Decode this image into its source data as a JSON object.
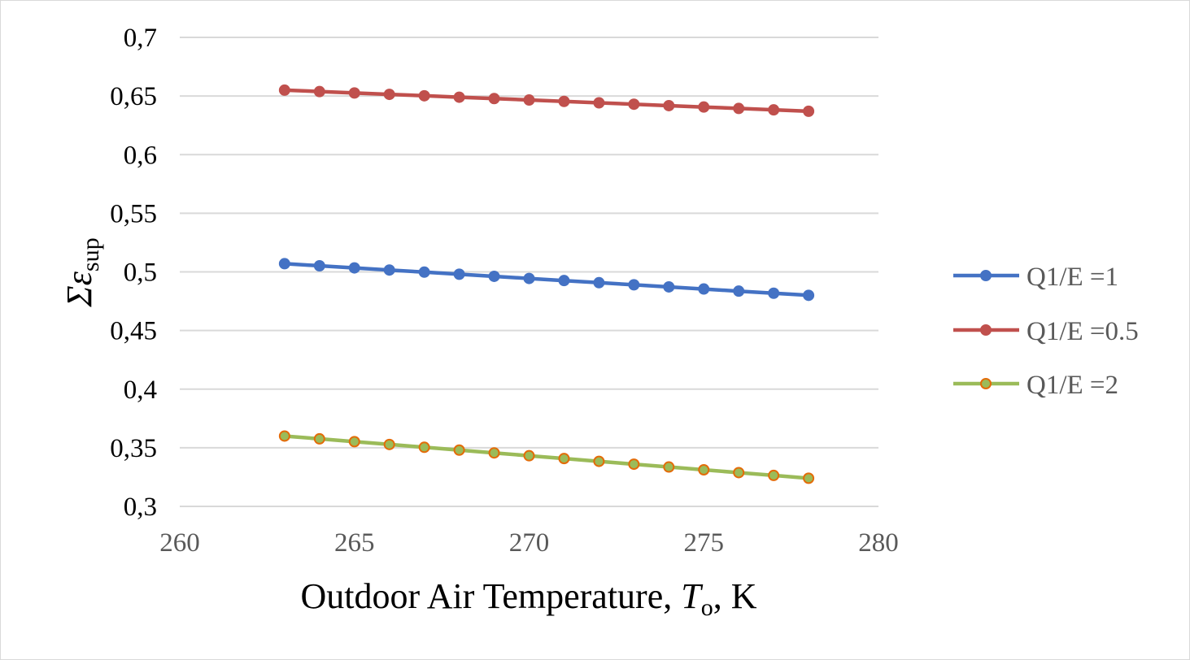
{
  "chart_data": {
    "type": "line",
    "title": "",
    "xlabel": {
      "prefix": "Outdoor Air Temperature, ",
      "symbol": "T",
      "subscript": "o",
      "suffix": ", K"
    },
    "ylabel": {
      "symbol": "Σε",
      "subscript": "sup"
    },
    "xlim": [
      260,
      280
    ],
    "ylim": [
      0.3,
      0.7
    ],
    "xticks": [
      "260",
      "265",
      "270",
      "275",
      "280"
    ],
    "yticks": [
      "0,3",
      "0,35",
      "0,4",
      "0,45",
      "0,5",
      "0,55",
      "0,6",
      "0,65",
      "0,7"
    ],
    "grid": "horizontal",
    "legend_position": "right",
    "x": [
      263,
      264,
      265,
      266,
      267,
      268,
      269,
      270,
      271,
      272,
      273,
      274,
      275,
      276,
      277,
      278
    ],
    "series": [
      {
        "name": "Q1/E =1",
        "line_color": "#4472c4",
        "marker_fill": "#4472c4",
        "marker_stroke": "#4472c4",
        "values": [
          0.507,
          0.5052,
          0.5034,
          0.5016,
          0.4998,
          0.498,
          0.4962,
          0.4944,
          0.4926,
          0.4908,
          0.489,
          0.4872,
          0.4854,
          0.4836,
          0.4818,
          0.48
        ]
      },
      {
        "name": "Q1/E =0.5",
        "line_color": "#c0504d",
        "marker_fill": "#c0504d",
        "marker_stroke": "#c0504d",
        "values": [
          0.655,
          0.6538,
          0.6526,
          0.6514,
          0.6502,
          0.649,
          0.6478,
          0.6466,
          0.6454,
          0.6442,
          0.643,
          0.6418,
          0.6406,
          0.6394,
          0.6382,
          0.637
        ]
      },
      {
        "name": "Q1/E =2",
        "line_color": "#9bbb59",
        "marker_fill": "#9bbb59",
        "marker_stroke": "#e36c09",
        "values": [
          0.36,
          0.3576,
          0.3552,
          0.3528,
          0.3504,
          0.348,
          0.3456,
          0.3432,
          0.3408,
          0.3384,
          0.336,
          0.3336,
          0.3312,
          0.3288,
          0.3264,
          0.324
        ]
      }
    ]
  }
}
